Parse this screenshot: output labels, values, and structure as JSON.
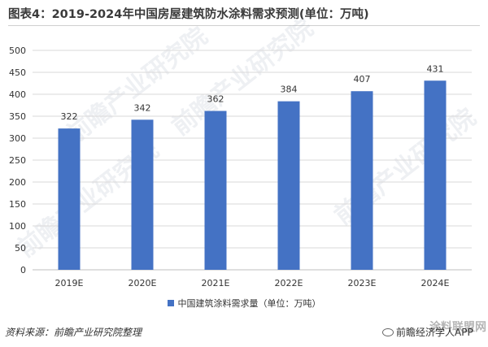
{
  "title": "图表4：2019-2024年中国房屋建筑防水涂料需求预测(单位：万吨)",
  "watermark": "前瞻产业研究院",
  "source": "资料来源：前瞻产业研究院整理",
  "brand": "前瞻经济学人APP",
  "corner_stamp": "涂料联盟网",
  "colors": {
    "bar": "#4472c4",
    "grid": "#d9d9d9",
    "axis": "#bfbfbf"
  },
  "chart_data": {
    "type": "bar",
    "title": "图表4：2019-2024年中国房屋建筑防水涂料需求预测(单位：万吨)",
    "categories": [
      "2019E",
      "2020E",
      "2021E",
      "2022E",
      "2023E",
      "2024E"
    ],
    "series": [
      {
        "name": "中国建筑涂料需求量（单位：万吨）",
        "values": [
          322,
          342,
          362,
          384,
          407,
          431
        ]
      }
    ],
    "ylim": [
      0,
      500
    ],
    "yticks": [
      0,
      50,
      100,
      150,
      200,
      250,
      300,
      350,
      400,
      450,
      500
    ],
    "grid": true,
    "legend_position": "bottom",
    "data_labels": true
  }
}
